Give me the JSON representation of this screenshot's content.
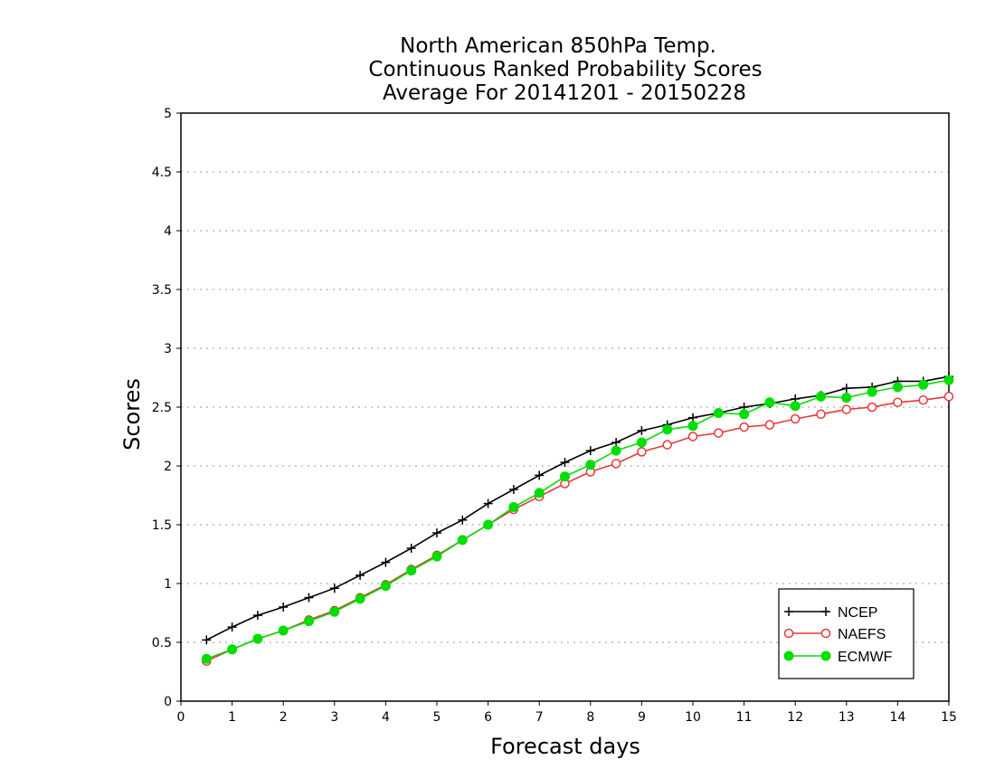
{
  "chart_data": {
    "type": "line",
    "title_lines": [
      "North American 850hPa Temp.",
      "Continuous Ranked Probability Scores",
      "Average For 20141201 - 20150228"
    ],
    "xlabel": "Forecast days",
    "ylabel": "Scores",
    "xlim": [
      0,
      15
    ],
    "ylim": [
      0,
      5
    ],
    "x_ticks": [
      "0",
      "1",
      "2",
      "3",
      "4",
      "5",
      "6",
      "7",
      "8",
      "9",
      "10",
      "11",
      "12",
      "13",
      "14",
      "15"
    ],
    "y_ticks": [
      "0",
      "0.5",
      "1",
      "1.5",
      "2",
      "2.5",
      "3",
      "3.5",
      "4",
      "4.5",
      "5"
    ],
    "grid": "horizontal dotted",
    "legend_position": "bottom-right",
    "x": [
      0.5,
      1,
      1.5,
      2,
      2.5,
      3,
      3.5,
      4,
      4.5,
      5,
      5.5,
      6,
      6.5,
      7,
      7.5,
      8,
      8.5,
      9,
      9.5,
      10,
      10.5,
      11,
      11.5,
      12,
      12.5,
      13,
      13.5,
      14,
      14.5,
      15
    ],
    "series": [
      {
        "name": "NCEP",
        "color": "#000000",
        "marker": "plus",
        "values": [
          0.52,
          0.63,
          0.73,
          0.8,
          0.88,
          0.96,
          1.07,
          1.18,
          1.3,
          1.43,
          1.54,
          1.68,
          1.8,
          1.92,
          2.03,
          2.13,
          2.2,
          2.3,
          2.35,
          2.41,
          2.45,
          2.5,
          2.53,
          2.57,
          2.6,
          2.66,
          2.67,
          2.72,
          2.72,
          2.76
        ]
      },
      {
        "name": "NAEFS",
        "color": "#e8383a",
        "marker": "open-circle",
        "values": [
          0.34,
          0.44,
          0.53,
          0.6,
          0.69,
          0.77,
          0.88,
          0.99,
          1.12,
          1.24,
          1.37,
          1.5,
          1.63,
          1.74,
          1.85,
          1.95,
          2.02,
          2.12,
          2.18,
          2.25,
          2.28,
          2.33,
          2.35,
          2.4,
          2.44,
          2.48,
          2.5,
          2.54,
          2.56,
          2.59
        ]
      },
      {
        "name": "ECMWF",
        "color": "#00dd00",
        "marker": "filled-circle",
        "values": [
          0.36,
          0.44,
          0.53,
          0.6,
          0.68,
          0.76,
          0.87,
          0.98,
          1.11,
          1.23,
          1.37,
          1.5,
          1.65,
          1.77,
          1.91,
          2.01,
          2.13,
          2.2,
          2.31,
          2.34,
          2.45,
          2.44,
          2.54,
          2.51,
          2.59,
          2.58,
          2.63,
          2.67,
          2.69,
          2.73
        ]
      }
    ]
  }
}
